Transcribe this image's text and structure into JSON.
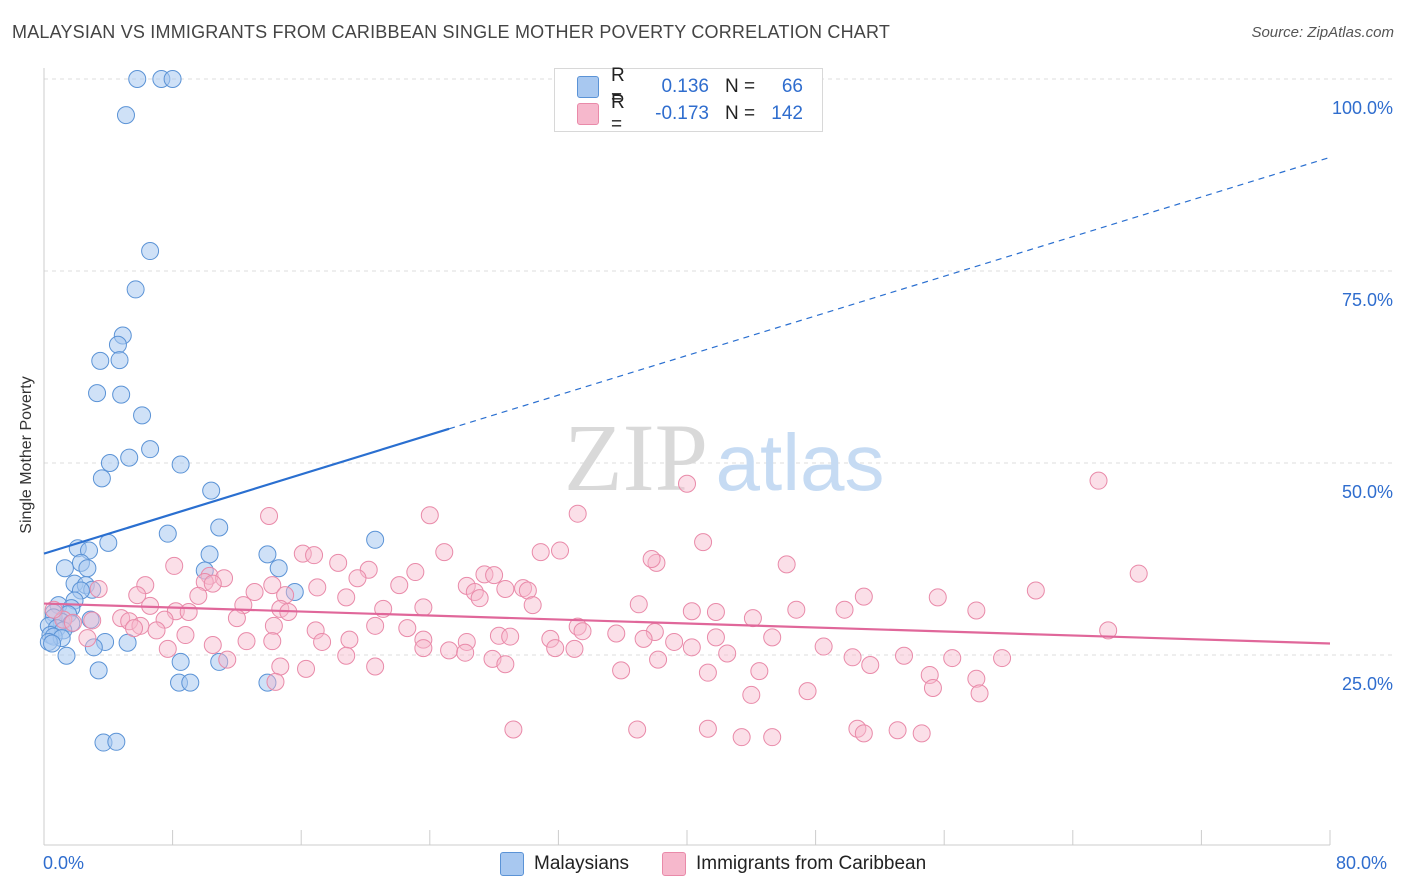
{
  "title": "MALAYSIAN VS IMMIGRANTS FROM CARIBBEAN SINGLE MOTHER POVERTY CORRELATION CHART",
  "source": "Source: ZipAtlas.com",
  "watermark": {
    "zip": "ZIP",
    "atlas": "atlas"
  },
  "colors": {
    "blue_fill": "#a8c8f0",
    "blue_stroke": "#5b93d6",
    "blue_line": "#2a6fd0",
    "pink_fill": "#f6b8cc",
    "pink_stroke": "#e98aa9",
    "pink_line": "#e0679a",
    "axis_text": "#2f6dce",
    "grid": "#dcdcdc"
  },
  "legend": {
    "r_label": "R =",
    "n_label": "N =",
    "rows": [
      {
        "series": "Malaysians",
        "r": "0.136",
        "n": "66"
      },
      {
        "series": "Immigrants from Caribbean",
        "r": "-0.173",
        "n": "142"
      }
    ]
  },
  "chart_data": {
    "type": "scatter",
    "title": "MALAYSIAN VS IMMIGRANTS FROM CARIBBEAN SINGLE MOTHER POVERTY CORRELATION CHART",
    "xlabel": "",
    "ylabel": "Single Mother Poverty",
    "xlim": [
      0,
      80
    ],
    "ylim": [
      0,
      105
    ],
    "x_tick_labels": [
      "0.0%",
      "80.0%"
    ],
    "y_ticks": [
      25,
      50,
      75,
      100
    ],
    "y_tick_labels": [
      "25.0%",
      "50.0%",
      "75.0%",
      "100.0%"
    ],
    "x_minor_ticks": [
      0,
      8,
      16,
      24,
      32,
      40,
      48,
      56,
      64,
      72,
      80
    ],
    "grid": true,
    "legend_position": "top-center",
    "series": [
      {
        "name": "Malaysians",
        "r": 0.136,
        "n": 66,
        "trend": {
          "x0": 0,
          "y0": 38.2,
          "x_solid_end": 25.2,
          "x_end": 80,
          "y_end": 89.8
        },
        "points": [
          [
            5.8,
            100
          ],
          [
            7.3,
            100
          ],
          [
            8.0,
            100
          ],
          [
            5.1,
            95.3
          ],
          [
            6.6,
            77.6
          ],
          [
            5.7,
            72.6
          ],
          [
            4.9,
            66.6
          ],
          [
            4.6,
            65.4
          ],
          [
            3.5,
            63.3
          ],
          [
            4.7,
            63.4
          ],
          [
            3.3,
            59.1
          ],
          [
            4.8,
            58.9
          ],
          [
            6.1,
            56.2
          ],
          [
            6.6,
            51.8
          ],
          [
            5.3,
            50.7
          ],
          [
            4.1,
            50.0
          ],
          [
            8.5,
            49.8
          ],
          [
            3.6,
            48.0
          ],
          [
            10.4,
            46.4
          ],
          [
            10.9,
            41.6
          ],
          [
            7.7,
            40.8
          ],
          [
            20.6,
            40.0
          ],
          [
            4.0,
            39.6
          ],
          [
            2.1,
            38.9
          ],
          [
            2.8,
            38.6
          ],
          [
            10.3,
            38.1
          ],
          [
            13.9,
            38.1
          ],
          [
            2.3,
            37.0
          ],
          [
            1.3,
            36.3
          ],
          [
            2.7,
            36.3
          ],
          [
            14.6,
            36.3
          ],
          [
            10.0,
            36.0
          ],
          [
            1.9,
            34.3
          ],
          [
            2.6,
            34.1
          ],
          [
            3.0,
            33.5
          ],
          [
            15.6,
            33.2
          ],
          [
            2.3,
            33.4
          ],
          [
            1.9,
            32.1
          ],
          [
            0.9,
            31.5
          ],
          [
            1.7,
            31.1
          ],
          [
            0.6,
            30.5
          ],
          [
            1.5,
            30.3
          ],
          [
            0.6,
            29.9
          ],
          [
            2.9,
            29.6
          ],
          [
            1.1,
            29.3
          ],
          [
            1.7,
            29.1
          ],
          [
            0.3,
            28.8
          ],
          [
            0.8,
            28.5
          ],
          [
            1.2,
            28.2
          ],
          [
            0.4,
            27.6
          ],
          [
            0.6,
            27.4
          ],
          [
            1.1,
            27.2
          ],
          [
            0.3,
            26.7
          ],
          [
            0.5,
            26.5
          ],
          [
            3.8,
            26.7
          ],
          [
            5.2,
            26.6
          ],
          [
            3.1,
            26.0
          ],
          [
            1.4,
            24.9
          ],
          [
            8.5,
            24.1
          ],
          [
            10.9,
            24.1
          ],
          [
            3.4,
            23.0
          ],
          [
            8.4,
            21.4
          ],
          [
            9.1,
            21.4
          ],
          [
            13.9,
            21.4
          ],
          [
            3.7,
            13.6
          ],
          [
            4.5,
            13.7
          ]
        ]
      },
      {
        "name": "Immigrants from Caribbean",
        "r": -0.173,
        "n": 142,
        "trend": {
          "x0": 0,
          "y0": 31.7,
          "x_end": 80,
          "y_end": 26.5
        },
        "points": [
          [
            40.0,
            47.3
          ],
          [
            65.6,
            47.7
          ],
          [
            24.0,
            43.2
          ],
          [
            33.2,
            43.4
          ],
          [
            14.0,
            43.1
          ],
          [
            41.0,
            39.7
          ],
          [
            24.9,
            38.4
          ],
          [
            30.9,
            38.4
          ],
          [
            32.1,
            38.6
          ],
          [
            16.1,
            38.2
          ],
          [
            16.8,
            38.0
          ],
          [
            18.3,
            37.0
          ],
          [
            38.1,
            37.0
          ],
          [
            37.8,
            37.5
          ],
          [
            46.2,
            36.8
          ],
          [
            8.1,
            36.6
          ],
          [
            20.2,
            36.1
          ],
          [
            23.1,
            35.8
          ],
          [
            27.4,
            35.5
          ],
          [
            28.0,
            35.4
          ],
          [
            68.1,
            35.6
          ],
          [
            10.3,
            35.3
          ],
          [
            11.2,
            35.0
          ],
          [
            19.5,
            35.0
          ],
          [
            10.0,
            34.5
          ],
          [
            10.5,
            34.3
          ],
          [
            6.3,
            34.1
          ],
          [
            14.2,
            34.1
          ],
          [
            17.0,
            33.8
          ],
          [
            22.1,
            34.1
          ],
          [
            26.3,
            34.0
          ],
          [
            28.7,
            33.6
          ],
          [
            29.8,
            33.7
          ],
          [
            26.8,
            33.2
          ],
          [
            30.1,
            33.4
          ],
          [
            61.7,
            33.4
          ],
          [
            13.1,
            33.2
          ],
          [
            15.0,
            32.8
          ],
          [
            5.8,
            32.8
          ],
          [
            3.4,
            33.6
          ],
          [
            9.6,
            32.7
          ],
          [
            18.8,
            32.5
          ],
          [
            51.0,
            32.6
          ],
          [
            55.6,
            32.5
          ],
          [
            27.1,
            32.4
          ],
          [
            30.4,
            31.5
          ],
          [
            37.0,
            31.6
          ],
          [
            6.6,
            31.4
          ],
          [
            12.4,
            31.5
          ],
          [
            21.1,
            31.0
          ],
          [
            23.6,
            31.2
          ],
          [
            14.7,
            31.0
          ],
          [
            15.2,
            30.6
          ],
          [
            8.2,
            30.7
          ],
          [
            9.0,
            30.6
          ],
          [
            40.3,
            30.7
          ],
          [
            46.8,
            30.9
          ],
          [
            58.0,
            30.8
          ],
          [
            49.8,
            30.9
          ],
          [
            41.8,
            30.6
          ],
          [
            44.1,
            29.8
          ],
          [
            12.0,
            29.8
          ],
          [
            3.0,
            29.5
          ],
          [
            4.8,
            29.8
          ],
          [
            1.2,
            29.6
          ],
          [
            0.6,
            30.9
          ],
          [
            1.8,
            29.2
          ],
          [
            7.5,
            29.6
          ],
          [
            5.3,
            29.4
          ],
          [
            6.0,
            28.8
          ],
          [
            14.3,
            28.8
          ],
          [
            20.6,
            28.8
          ],
          [
            22.6,
            28.5
          ],
          [
            33.2,
            28.7
          ],
          [
            5.6,
            28.5
          ],
          [
            7.0,
            28.2
          ],
          [
            16.9,
            28.2
          ],
          [
            33.5,
            28.1
          ],
          [
            66.2,
            28.2
          ],
          [
            38.0,
            28.0
          ],
          [
            35.6,
            27.8
          ],
          [
            41.8,
            27.3
          ],
          [
            45.3,
            27.3
          ],
          [
            8.8,
            27.6
          ],
          [
            28.3,
            27.5
          ],
          [
            29.0,
            27.4
          ],
          [
            31.5,
            27.1
          ],
          [
            19.0,
            27.0
          ],
          [
            23.6,
            27.0
          ],
          [
            37.3,
            27.1
          ],
          [
            2.7,
            27.2
          ],
          [
            12.6,
            26.8
          ],
          [
            14.2,
            26.8
          ],
          [
            17.3,
            26.7
          ],
          [
            26.3,
            26.7
          ],
          [
            39.2,
            26.7
          ],
          [
            40.3,
            26.0
          ],
          [
            48.5,
            26.1
          ],
          [
            10.5,
            26.3
          ],
          [
            7.7,
            25.8
          ],
          [
            23.6,
            25.9
          ],
          [
            31.8,
            25.9
          ],
          [
            33.0,
            25.8
          ],
          [
            25.2,
            25.6
          ],
          [
            26.2,
            25.3
          ],
          [
            42.5,
            25.2
          ],
          [
            18.8,
            24.9
          ],
          [
            27.9,
            24.5
          ],
          [
            38.2,
            24.4
          ],
          [
            50.3,
            24.7
          ],
          [
            53.5,
            24.9
          ],
          [
            56.5,
            24.6
          ],
          [
            59.6,
            24.6
          ],
          [
            11.4,
            24.4
          ],
          [
            28.7,
            23.8
          ],
          [
            51.4,
            23.7
          ],
          [
            14.7,
            23.5
          ],
          [
            20.6,
            23.5
          ],
          [
            16.3,
            23.2
          ],
          [
            35.9,
            23.0
          ],
          [
            44.5,
            22.9
          ],
          [
            41.3,
            22.7
          ],
          [
            55.1,
            22.4
          ],
          [
            58.0,
            21.9
          ],
          [
            14.4,
            21.5
          ],
          [
            55.3,
            20.7
          ],
          [
            58.2,
            20.0
          ],
          [
            44.0,
            19.8
          ],
          [
            47.5,
            20.3
          ],
          [
            29.2,
            15.3
          ],
          [
            36.9,
            15.3
          ],
          [
            41.3,
            15.4
          ],
          [
            50.6,
            15.4
          ],
          [
            53.1,
            15.2
          ],
          [
            51.0,
            14.8
          ],
          [
            54.6,
            14.8
          ],
          [
            43.4,
            14.3
          ],
          [
            45.3,
            14.3
          ]
        ]
      }
    ]
  },
  "bottom_legend": [
    "Malaysians",
    "Immigrants from Caribbean"
  ]
}
